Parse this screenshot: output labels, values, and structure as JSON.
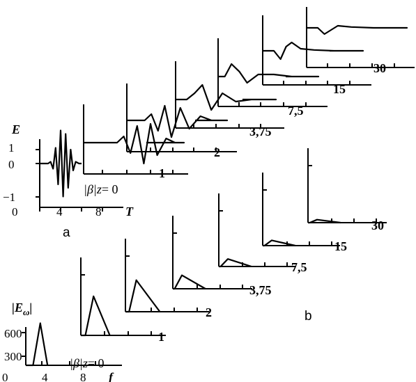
{
  "panel_a": {
    "letter": "a",
    "y_axis_label": "E",
    "x_axis_label": "T",
    "y_ticks": [
      "1",
      "0",
      "−1"
    ],
    "x_ticks": [
      "0",
      "4",
      "8"
    ],
    "z_prefix": "|β|z",
    "z_labels": [
      "= 0",
      "1",
      "2",
      "3,75",
      "7,5",
      "15",
      "30"
    ]
  },
  "panel_b": {
    "letter": "b",
    "y_axis_label": "|E",
    "y_axis_sub": "ω",
    "x_axis_label": "f",
    "y_ticks": [
      "600",
      "300"
    ],
    "x_ticks": [
      "0",
      "4",
      "8"
    ],
    "z_prefix": "|β|z",
    "z_labels": [
      "= 0",
      "1",
      "2",
      "3,75",
      "7,5",
      "15",
      "30"
    ]
  },
  "chart_data": [
    {
      "type": "line",
      "panel": "a",
      "ylabel": "E",
      "xlabel": "T",
      "ylim": [
        -1,
        1
      ],
      "xlim": [
        0,
        10
      ],
      "series_parameter": "|β|z",
      "series": [
        {
          "name": "0",
          "x": [
            0,
            0.5,
            1.0,
            1.3,
            1.6,
            1.9,
            2.2,
            2.5,
            2.8,
            3.1,
            3.4,
            3.7,
            4.0,
            4.3,
            4.7,
            5.0
          ],
          "y": [
            0,
            0,
            0,
            0.05,
            -0.15,
            0.45,
            -0.6,
            0.95,
            -0.95,
            0.85,
            -0.7,
            0.4,
            -0.2,
            0.05,
            0,
            0
          ]
        },
        {
          "name": "1",
          "x": [
            0,
            3.0,
            3.6,
            4.2,
            4.8,
            5.4,
            6.0,
            6.6,
            7.4,
            8.2,
            9.0
          ],
          "y": [
            0,
            0,
            0.15,
            -0.25,
            0.4,
            -0.5,
            0.45,
            -0.3,
            0.1,
            0,
            0
          ]
        },
        {
          "name": "2",
          "x": [
            0,
            1.6,
            2.2,
            2.8,
            3.4,
            4.0,
            4.8,
            5.6,
            6.6,
            7.6,
            9.0
          ],
          "y": [
            0,
            0,
            0.15,
            -0.25,
            0.35,
            -0.4,
            0.3,
            -0.2,
            0.1,
            0,
            0
          ]
        },
        {
          "name": "3,75",
          "x": [
            0,
            1.0,
            1.7,
            2.4,
            3.2,
            4.2,
            5.4,
            6.8,
            9.0
          ],
          "y": [
            0,
            0,
            0.15,
            0.35,
            -0.25,
            0.15,
            -0.05,
            0,
            0
          ]
        },
        {
          "name": "7,5",
          "x": [
            0,
            0.6,
            1.2,
            1.9,
            2.6,
            3.6,
            5.0,
            6.6,
            9.0
          ],
          "y": [
            0,
            0,
            0.3,
            0.12,
            -0.15,
            0.05,
            0.05,
            0,
            0
          ]
        },
        {
          "name": "15",
          "x": [
            0,
            1.0,
            1.6,
            2.1,
            2.6,
            3.4,
            4.6,
            6.4,
            9.0
          ],
          "y": [
            0,
            0,
            -0.2,
            0.1,
            0.2,
            0.05,
            0.02,
            0,
            0
          ]
        },
        {
          "name": "30",
          "x": [
            0,
            1.0,
            1.6,
            2.2,
            2.8,
            4.0,
            6.0,
            9.0
          ],
          "y": [
            0,
            0,
            -0.15,
            -0.05,
            0.05,
            0.02,
            0,
            0
          ]
        }
      ]
    },
    {
      "type": "line",
      "panel": "b",
      "ylabel": "|E_ω|",
      "xlabel": "f",
      "ylim": [
        0,
        900
      ],
      "xlim": [
        0,
        10
      ],
      "series_parameter": "|β|z",
      "series": [
        {
          "name": "0",
          "x": [
            0,
            0.8,
            1.6,
            2.4,
            10
          ],
          "y": [
            0,
            0,
            560,
            0,
            0
          ]
        },
        {
          "name": "1",
          "x": [
            0,
            0.5,
            1.4,
            3.2,
            10
          ],
          "y": [
            0,
            0,
            520,
            0,
            0
          ]
        },
        {
          "name": "2",
          "x": [
            0,
            0.4,
            1.2,
            3.8,
            10
          ],
          "y": [
            0,
            0,
            420,
            0,
            0
          ]
        },
        {
          "name": "3,75",
          "x": [
            0,
            0.2,
            1.0,
            3.6,
            10
          ],
          "y": [
            0,
            0,
            180,
            0,
            0
          ]
        },
        {
          "name": "7,5",
          "x": [
            0,
            0.2,
            1.0,
            3.6,
            10
          ],
          "y": [
            0,
            0,
            100,
            0,
            0
          ]
        },
        {
          "name": "15",
          "x": [
            0,
            0.2,
            1.0,
            3.6,
            10
          ],
          "y": [
            0,
            0,
            70,
            0,
            0
          ]
        },
        {
          "name": "30",
          "x": [
            0,
            0.2,
            1.0,
            3.6,
            10
          ],
          "y": [
            0,
            0,
            40,
            0,
            0
          ]
        }
      ]
    }
  ]
}
